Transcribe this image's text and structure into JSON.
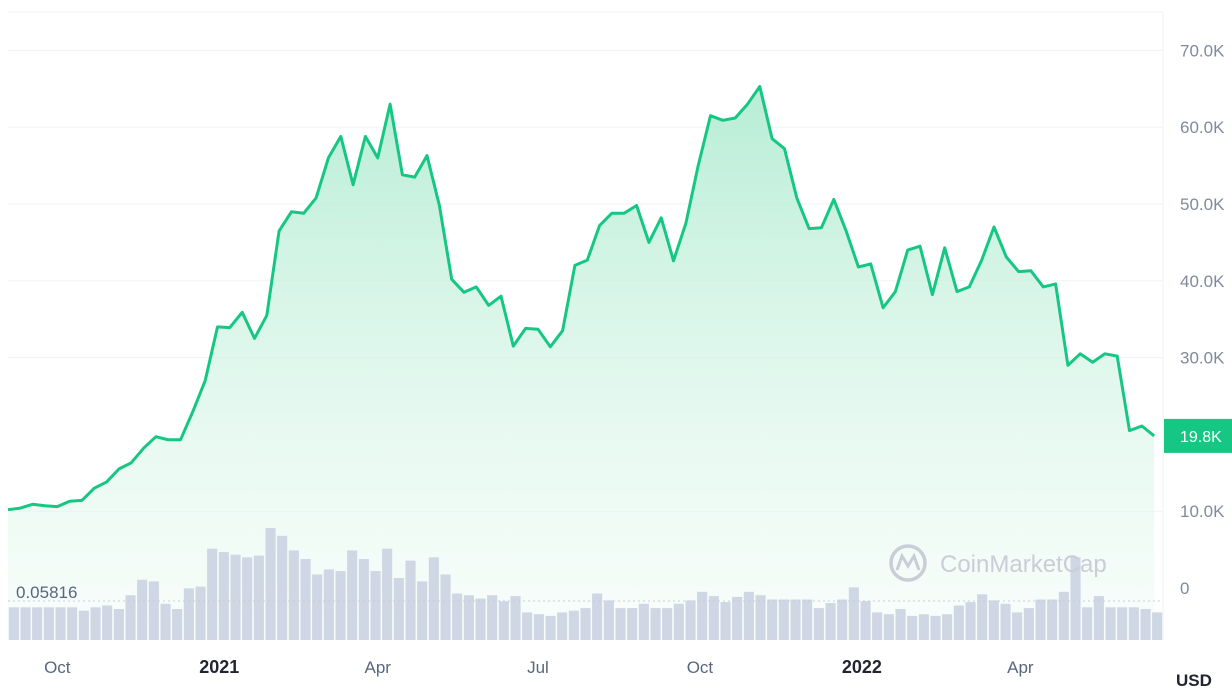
{
  "chart_data": {
    "type": "line",
    "price_unit": "USD",
    "y_ticks": [
      "70.0K",
      "60.0K",
      "50.0K",
      "40.0K",
      "30.0K",
      "10.0K",
      "0"
    ],
    "y_tick_values": [
      70000,
      60000,
      50000,
      40000,
      30000,
      10000,
      0
    ],
    "ylim": [
      0,
      75000
    ],
    "x_ticks": [
      {
        "label": "Oct",
        "date": "2020-10-01",
        "year": false
      },
      {
        "label": "2021",
        "date": "2021-01-01",
        "year": true
      },
      {
        "label": "Apr",
        "date": "2021-04-01",
        "year": false
      },
      {
        "label": "Jul",
        "date": "2021-07-01",
        "year": false
      },
      {
        "label": "Oct",
        "date": "2021-10-01",
        "year": false
      },
      {
        "label": "2022",
        "date": "2022-01-01",
        "year": true
      },
      {
        "label": "Apr",
        "date": "2022-04-01",
        "year": false
      }
    ],
    "xlim": [
      "2020-09-03",
      "2022-06-21"
    ],
    "current_price_label": "19.8K",
    "current_price": 19800,
    "volume_label": "0.05816",
    "watermark": "CoinMarketCap",
    "colors": {
      "line": "#16c784",
      "fill_top": "#b3ecd3",
      "volume_bar": "#cfd6e4",
      "volume_bar_dark": "#aab3c5",
      "axis_text": "#808a9d",
      "grid": "#eff2f5",
      "badge": "#16c784"
    },
    "series": [
      {
        "type": "line",
        "points": [
          [
            "2020-09-03",
            10200
          ],
          [
            "2020-09-10",
            10400
          ],
          [
            "2020-09-17",
            10900
          ],
          [
            "2020-09-24",
            10700
          ],
          [
            "2020-10-01",
            10600
          ],
          [
            "2020-10-08",
            11300
          ],
          [
            "2020-10-15",
            11400
          ],
          [
            "2020-10-22",
            13000
          ],
          [
            "2020-10-29",
            13800
          ],
          [
            "2020-11-05",
            15500
          ],
          [
            "2020-11-12",
            16300
          ],
          [
            "2020-11-19",
            18200
          ],
          [
            "2020-11-26",
            19700
          ],
          [
            "2020-12-03",
            19300
          ],
          [
            "2020-12-10",
            19300
          ],
          [
            "2020-12-17",
            23000
          ],
          [
            "2020-12-24",
            27000
          ],
          [
            "2020-12-31",
            34000
          ],
          [
            "2021-01-07",
            33900
          ],
          [
            "2021-01-14",
            35900
          ],
          [
            "2021-01-21",
            32500
          ],
          [
            "2021-01-28",
            35500
          ],
          [
            "2021-02-04",
            46500
          ],
          [
            "2021-02-11",
            49000
          ],
          [
            "2021-02-18",
            48800
          ],
          [
            "2021-02-25",
            50800
          ],
          [
            "2021-03-04",
            56000
          ],
          [
            "2021-03-11",
            58800
          ],
          [
            "2021-03-18",
            52500
          ],
          [
            "2021-03-25",
            58800
          ],
          [
            "2021-04-01",
            56000
          ],
          [
            "2021-04-08",
            63000
          ],
          [
            "2021-04-15",
            53800
          ],
          [
            "2021-04-22",
            53500
          ],
          [
            "2021-04-29",
            56300
          ],
          [
            "2021-05-06",
            49800
          ],
          [
            "2021-05-13",
            40200
          ],
          [
            "2021-05-20",
            38500
          ],
          [
            "2021-05-27",
            39200
          ],
          [
            "2021-06-03",
            36800
          ],
          [
            "2021-06-10",
            38000
          ],
          [
            "2021-06-17",
            31500
          ],
          [
            "2021-06-24",
            33800
          ],
          [
            "2021-07-01",
            33700
          ],
          [
            "2021-07-08",
            31400
          ],
          [
            "2021-07-15",
            33500
          ],
          [
            "2021-07-22",
            42000
          ],
          [
            "2021-07-29",
            42700
          ],
          [
            "2021-08-05",
            47200
          ],
          [
            "2021-08-12",
            48800
          ],
          [
            "2021-08-19",
            48800
          ],
          [
            "2021-08-26",
            49800
          ],
          [
            "2021-09-02",
            45000
          ],
          [
            "2021-09-09",
            48200
          ],
          [
            "2021-09-16",
            42600
          ],
          [
            "2021-09-23",
            47500
          ],
          [
            "2021-09-30",
            55000
          ],
          [
            "2021-10-07",
            61500
          ],
          [
            "2021-10-14",
            60900
          ],
          [
            "2021-10-21",
            61200
          ],
          [
            "2021-10-28",
            63000
          ],
          [
            "2021-11-04",
            65300
          ],
          [
            "2021-11-11",
            58500
          ],
          [
            "2021-11-18",
            57200
          ],
          [
            "2021-11-25",
            50800
          ],
          [
            "2021-12-02",
            46800
          ],
          [
            "2021-12-09",
            46900
          ],
          [
            "2021-12-16",
            50600
          ],
          [
            "2021-12-23",
            46500
          ],
          [
            "2021-12-30",
            41800
          ],
          [
            "2022-01-06",
            42200
          ],
          [
            "2022-01-13",
            36500
          ],
          [
            "2022-01-20",
            38600
          ],
          [
            "2022-01-27",
            44000
          ],
          [
            "2022-02-03",
            44500
          ],
          [
            "2022-02-10",
            38200
          ],
          [
            "2022-02-17",
            44300
          ],
          [
            "2022-02-24",
            38600
          ],
          [
            "2022-03-03",
            39200
          ],
          [
            "2022-03-10",
            42700
          ],
          [
            "2022-03-17",
            47000
          ],
          [
            "2022-03-24",
            43100
          ],
          [
            "2022-03-31",
            41200
          ],
          [
            "2022-04-07",
            41300
          ],
          [
            "2022-04-14",
            39200
          ],
          [
            "2022-04-21",
            39600
          ],
          [
            "2022-04-28",
            29000
          ],
          [
            "2022-05-05",
            30500
          ],
          [
            "2022-05-12",
            29400
          ],
          [
            "2022-05-19",
            30500
          ],
          [
            "2022-05-26",
            30200
          ],
          [
            "2022-06-02",
            20500
          ],
          [
            "2022-06-09",
            21100
          ],
          [
            "2022-06-16",
            19800
          ]
        ]
      },
      {
        "type": "bar",
        "role": "volume",
        "values": [
          0.38,
          0.38,
          0.38,
          0.38,
          0.38,
          0.38,
          0.34,
          0.38,
          0.4,
          0.36,
          0.52,
          0.7,
          0.68,
          0.42,
          0.36,
          0.6,
          0.62,
          1.06,
          1.02,
          0.99,
          0.96,
          0.98,
          1.3,
          1.21,
          1.04,
          0.94,
          0.76,
          0.82,
          0.8,
          1.04,
          0.94,
          0.8,
          1.06,
          0.72,
          0.92,
          0.68,
          0.96,
          0.76,
          0.54,
          0.52,
          0.48,
          0.52,
          0.45,
          0.51,
          0.32,
          0.3,
          0.28,
          0.32,
          0.34,
          0.37,
          0.54,
          0.46,
          0.37,
          0.37,
          0.42,
          0.37,
          0.37,
          0.42,
          0.46,
          0.56,
          0.51,
          0.44,
          0.5,
          0.56,
          0.52,
          0.47,
          0.47,
          0.47,
          0.47,
          0.37,
          0.43,
          0.47,
          0.61,
          0.45,
          0.32,
          0.3,
          0.36,
          0.28,
          0.3,
          0.28,
          0.3,
          0.4,
          0.44,
          0.53,
          0.46,
          0.42,
          0.32,
          0.37,
          0.47,
          0.47,
          0.56,
          0.96,
          0.38,
          0.51,
          0.38,
          0.38,
          0.38,
          0.36,
          0.32
        ]
      }
    ]
  }
}
